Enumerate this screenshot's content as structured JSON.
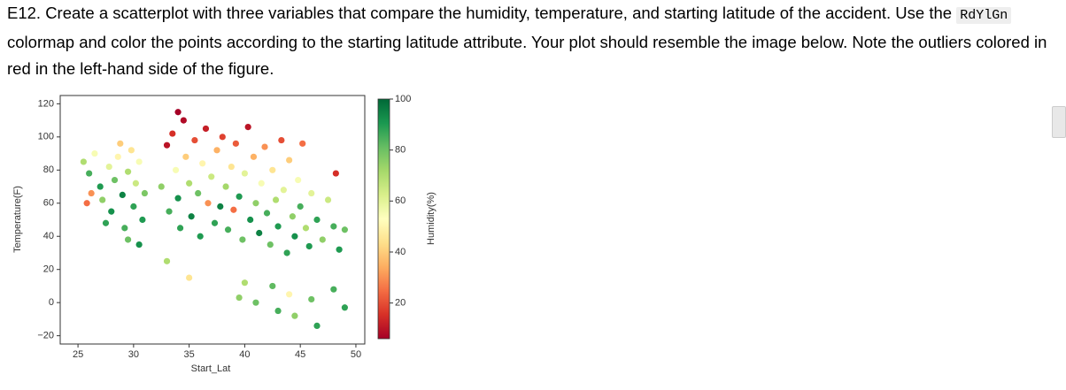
{
  "instruction": {
    "before": "E12. Create a scatterplot with three variables that compare the humidity, temperature, and starting latitude of the accident. Use the",
    "code": "RdYlGn",
    "after": "colormap and color the points according to the starting latitude attribute. Your plot should resemble the image below. Note the outliers colored in red in the left-hand side of the figure."
  },
  "chart_data": {
    "type": "scatter",
    "xlabel": "Start_Lat",
    "ylabel": "Temperature(F)",
    "colorbar_label": "Humidity(%)",
    "xlim": [
      23.4,
      50.8
    ],
    "ylim": [
      -25,
      125
    ],
    "xticks": [
      25,
      30,
      35,
      40,
      45,
      50
    ],
    "yticks": [
      {
        "value": -20,
        "label": "−20"
      },
      0,
      20,
      40,
      60,
      80,
      100,
      120
    ],
    "clim": [
      6,
      100
    ],
    "cticks": [
      20,
      40,
      60,
      80,
      100
    ],
    "colormap": [
      "#a50026",
      "#d73027",
      "#f46d43",
      "#fdae61",
      "#fee08b",
      "#ffffbf",
      "#d9ef8b",
      "#a6d96a",
      "#66bd63",
      "#1a9850",
      "#006837"
    ],
    "x": [
      25.5,
      26,
      26.5,
      27,
      27.2,
      27.8,
      28,
      28.3,
      28.6,
      29,
      29.2,
      29.5,
      29.8,
      30,
      30.2,
      30.5,
      30.8,
      31,
      25.8,
      26.2,
      29.5,
      30.5,
      27.5,
      28.8,
      32.5,
      33,
      33.2,
      33.5,
      33.8,
      34,
      34.2,
      34.5,
      34.7,
      35,
      35.2,
      35.5,
      35.8,
      36,
      36.2,
      36.5,
      36.7,
      37,
      37.3,
      37.5,
      37.8,
      38,
      38.3,
      38.5,
      38.8,
      39,
      39.2,
      39.5,
      39.8,
      40,
      40.3,
      40.5,
      40.8,
      41,
      41.3,
      41.5,
      41.8,
      42,
      42.3,
      42.5,
      42.8,
      43,
      43.3,
      43.5,
      43.8,
      44,
      44.3,
      44.5,
      44.8,
      45,
      45.2,
      45.5,
      45.8,
      46,
      46.5,
      47,
      47.5,
      48,
      48.5,
      49,
      48.2,
      34,
      35,
      39.5,
      41,
      43,
      44.5,
      46.5,
      49,
      48,
      42.5,
      44,
      46,
      33,
      40
    ],
    "y": [
      85,
      78,
      90,
      70,
      62,
      82,
      55,
      74,
      88,
      65,
      45,
      79,
      92,
      58,
      72,
      85,
      50,
      66,
      60,
      66,
      38,
      35,
      48,
      96,
      70,
      95,
      55,
      102,
      80,
      63,
      45,
      110,
      88,
      72,
      52,
      98,
      66,
      40,
      84,
      105,
      60,
      76,
      48,
      92,
      58,
      100,
      70,
      44,
      82,
      56,
      96,
      64,
      38,
      78,
      106,
      50,
      88,
      60,
      42,
      72,
      94,
      54,
      35,
      80,
      62,
      46,
      98,
      68,
      30,
      86,
      52,
      40,
      74,
      58,
      96,
      45,
      34,
      66,
      50,
      38,
      62,
      46,
      32,
      44,
      78,
      115,
      15,
      3,
      0,
      -5,
      -8,
      -14,
      -3,
      8,
      10,
      5,
      2,
      25,
      12
    ],
    "c": [
      70,
      85,
      55,
      90,
      75,
      60,
      92,
      80,
      50,
      95,
      85,
      70,
      45,
      88,
      65,
      55,
      90,
      78,
      25,
      30,
      80,
      92,
      88,
      40,
      75,
      10,
      85,
      15,
      55,
      92,
      88,
      8,
      40,
      70,
      95,
      20,
      80,
      90,
      50,
      12,
      30,
      65,
      88,
      35,
      95,
      18,
      72,
      85,
      45,
      25,
      22,
      90,
      80,
      60,
      10,
      92,
      35,
      75,
      95,
      55,
      30,
      85,
      80,
      45,
      70,
      90,
      20,
      60,
      88,
      40,
      75,
      92,
      55,
      85,
      25,
      70,
      90,
      60,
      88,
      75,
      65,
      85,
      90,
      80,
      15,
      5,
      45,
      75,
      80,
      85,
      75,
      88,
      88,
      85,
      82,
      50,
      80,
      70,
      70
    ]
  }
}
